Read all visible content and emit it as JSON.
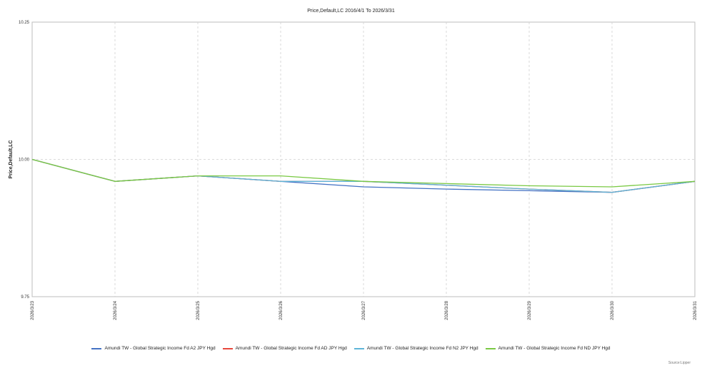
{
  "chart_data": {
    "type": "line",
    "title": "Price,Default,LC 2016/4/1 To 2026/3/31",
    "ylabel": "Price,Default,LC",
    "xlabel": "",
    "categories": [
      "2026/3/23",
      "2026/3/24",
      "2026/3/25",
      "2026/3/26",
      "2026/3/27",
      "2026/3/28",
      "2026/3/29",
      "2026/3/30",
      "2026/3/31"
    ],
    "ylim": [
      9.75,
      10.25
    ],
    "yticks": [
      "10.25",
      "10.00",
      "9.75"
    ],
    "grid": true,
    "legend_position": "bottom",
    "series": [
      {
        "name": "Amundi TW - Global Strategic Income Fd A2 JPY Hgd",
        "color": "#4472c4",
        "values": [
          10.0,
          9.96,
          9.97,
          9.96,
          9.95,
          9.946,
          9.943,
          9.94,
          9.96
        ]
      },
      {
        "name": "Amundi TW - Global Strategic Income Fd AD JPY Hgd",
        "color": "#e8473c",
        "values": [
          10.0,
          9.96,
          9.97,
          9.96,
          9.96,
          9.953,
          9.946,
          9.94,
          9.96
        ]
      },
      {
        "name": "Amundi TW - Global Strategic Income Fd N2 JPY Hgd",
        "color": "#5eb5d8",
        "values": [
          10.0,
          9.96,
          9.97,
          9.96,
          9.96,
          9.953,
          9.946,
          9.94,
          9.96
        ]
      },
      {
        "name": "Amundi TW - Global Strategic Income Fd ND JPY Hgd",
        "color": "#7ac943",
        "values": [
          10.0,
          9.96,
          9.97,
          9.97,
          9.96,
          9.956,
          9.952,
          9.95,
          9.96
        ]
      }
    ],
    "source": "Source:Lipper"
  }
}
